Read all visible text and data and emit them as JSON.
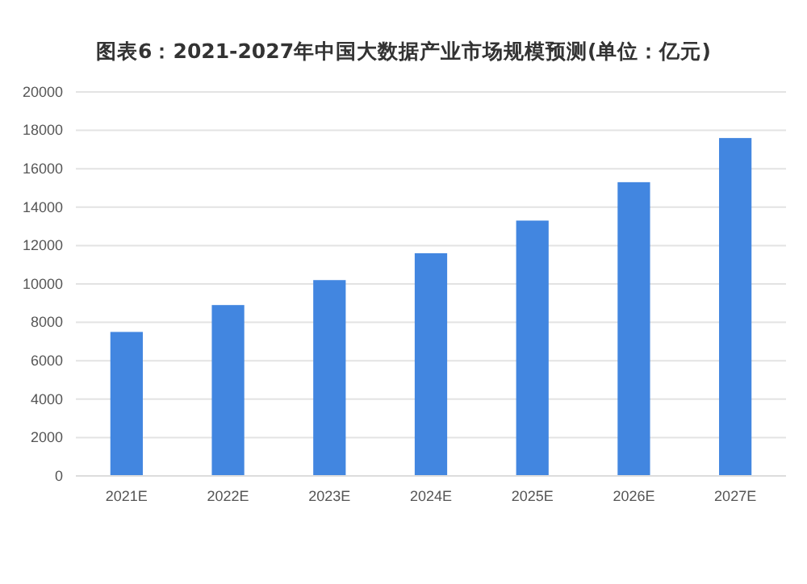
{
  "chart_data": {
    "type": "bar",
    "title": "图表6：2021-2027年中国大数据产业市场规模预测(单位：亿元)",
    "categories": [
      "2021E",
      "2022E",
      "2023E",
      "2024E",
      "2025E",
      "2026E",
      "2027E"
    ],
    "values": [
      7500,
      8900,
      10200,
      11600,
      13300,
      15300,
      17600
    ],
    "color": "#4286e0",
    "ylim": [
      0,
      20000
    ],
    "yticks": [
      0,
      2000,
      4000,
      6000,
      8000,
      10000,
      12000,
      14000,
      16000,
      18000,
      20000
    ],
    "grid": "y"
  }
}
